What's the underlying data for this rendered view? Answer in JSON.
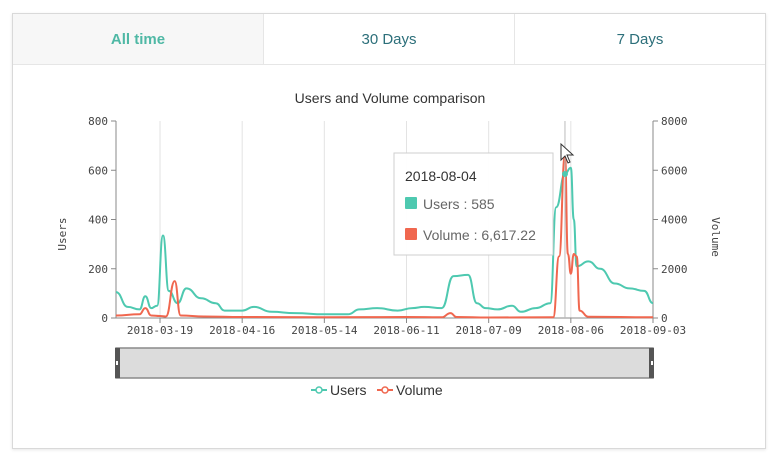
{
  "tabs": [
    {
      "label": "All time",
      "active": true
    },
    {
      "label": "30 Days",
      "active": false
    },
    {
      "label": "7 Days",
      "active": false
    }
  ],
  "colors": {
    "users": "#4ec9b0",
    "volume": "#f0674f",
    "tab_active": "#4fb8a5",
    "tab_inactive": "#2c6f7a"
  },
  "tooltip": {
    "date": "2018-08-04",
    "users_text": "Users : 585",
    "volume_text": "Volume : 6,617.22"
  },
  "cursor_icon": "mouse-pointer-icon",
  "chart_data": {
    "type": "line",
    "title": "Users and Volume comparison",
    "xlabel": "",
    "ylabel": "Users",
    "y2label": "Volume",
    "ylim": [
      0,
      800
    ],
    "y2lim": [
      0,
      8000
    ],
    "yticks": [
      "0",
      "200",
      "400",
      "600",
      "800"
    ],
    "y2ticks": [
      "0",
      "2000",
      "4000",
      "6000",
      "8000"
    ],
    "xlim": [
      "2018-03-04",
      "2018-09-03"
    ],
    "xticks": [
      "2018-03-19",
      "2018-04-16",
      "2018-05-14",
      "2018-06-11",
      "2018-07-09",
      "2018-08-06",
      "2018-09-03"
    ],
    "grid": "vertical",
    "legend_position": "bottom",
    "series": [
      {
        "name": "Users",
        "axis": "left",
        "points": [
          [
            "2018-03-04",
            105
          ],
          [
            "2018-03-08",
            45
          ],
          [
            "2018-03-12",
            35
          ],
          [
            "2018-03-14",
            88
          ],
          [
            "2018-03-16",
            40
          ],
          [
            "2018-03-18",
            50
          ],
          [
            "2018-03-20",
            335
          ],
          [
            "2018-03-22",
            110
          ],
          [
            "2018-03-25",
            60
          ],
          [
            "2018-03-28",
            120
          ],
          [
            "2018-04-02",
            80
          ],
          [
            "2018-04-07",
            60
          ],
          [
            "2018-04-10",
            30
          ],
          [
            "2018-04-16",
            30
          ],
          [
            "2018-04-20",
            45
          ],
          [
            "2018-04-26",
            25
          ],
          [
            "2018-05-04",
            20
          ],
          [
            "2018-05-14",
            15
          ],
          [
            "2018-05-22",
            15
          ],
          [
            "2018-05-26",
            35
          ],
          [
            "2018-06-01",
            40
          ],
          [
            "2018-06-08",
            30
          ],
          [
            "2018-06-13",
            40
          ],
          [
            "2018-06-17",
            45
          ],
          [
            "2018-06-23",
            40
          ],
          [
            "2018-06-27",
            170
          ],
          [
            "2018-07-02",
            175
          ],
          [
            "2018-07-05",
            60
          ],
          [
            "2018-07-08",
            40
          ],
          [
            "2018-07-12",
            35
          ],
          [
            "2018-07-17",
            50
          ],
          [
            "2018-07-20",
            25
          ],
          [
            "2018-07-25",
            40
          ],
          [
            "2018-07-30",
            60
          ],
          [
            "2018-08-01",
            450
          ],
          [
            "2018-08-04",
            585
          ],
          [
            "2018-08-06",
            610
          ],
          [
            "2018-08-07",
            400
          ],
          [
            "2018-08-08",
            210
          ],
          [
            "2018-08-12",
            230
          ],
          [
            "2018-08-16",
            200
          ],
          [
            "2018-08-21",
            140
          ],
          [
            "2018-08-26",
            120
          ],
          [
            "2018-08-31",
            110
          ],
          [
            "2018-09-03",
            60
          ]
        ]
      },
      {
        "name": "Volume",
        "axis": "right",
        "points": [
          [
            "2018-03-04",
            100
          ],
          [
            "2018-03-12",
            150
          ],
          [
            "2018-03-14",
            400
          ],
          [
            "2018-03-16",
            100
          ],
          [
            "2018-03-19",
            80
          ],
          [
            "2018-03-21",
            60
          ],
          [
            "2018-03-24",
            1500
          ],
          [
            "2018-03-26",
            100
          ],
          [
            "2018-04-03",
            60
          ],
          [
            "2018-04-16",
            40
          ],
          [
            "2018-05-14",
            30
          ],
          [
            "2018-06-11",
            40
          ],
          [
            "2018-06-23",
            30
          ],
          [
            "2018-06-26",
            200
          ],
          [
            "2018-06-28",
            40
          ],
          [
            "2018-07-09",
            20
          ],
          [
            "2018-07-31",
            30
          ],
          [
            "2018-08-02",
            2500
          ],
          [
            "2018-08-04",
            6617
          ],
          [
            "2018-08-05",
            2600
          ],
          [
            "2018-08-06",
            1800
          ],
          [
            "2018-08-07",
            2600
          ],
          [
            "2018-08-08",
            2500
          ],
          [
            "2018-08-09",
            300
          ],
          [
            "2018-08-12",
            50
          ],
          [
            "2018-09-03",
            30
          ]
        ]
      }
    ],
    "tooltip_date": "2018-08-04",
    "tooltip_users": 585,
    "tooltip_volume": 6617.22
  }
}
